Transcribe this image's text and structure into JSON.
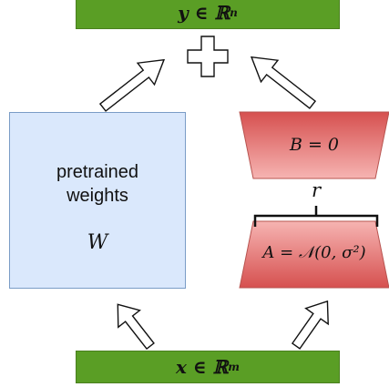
{
  "output": {
    "text": "y ∈ ℝ",
    "sup": "n"
  },
  "input": {
    "text": "x ∈ ℝ",
    "sup": "m"
  },
  "pretrained": {
    "label_line1": "pretrained",
    "label_line2": "weights",
    "symbol": "W"
  },
  "lora_b": {
    "text": "B = 0"
  },
  "lora_a": {
    "text": "A = 𝒩(0, σ²)"
  },
  "rank": {
    "text": "r"
  },
  "colors": {
    "green": "#5a9e25",
    "blue_fill": "#dae8fc",
    "red_top": "#f4a9a8",
    "red_bottom": "#d6504f"
  }
}
